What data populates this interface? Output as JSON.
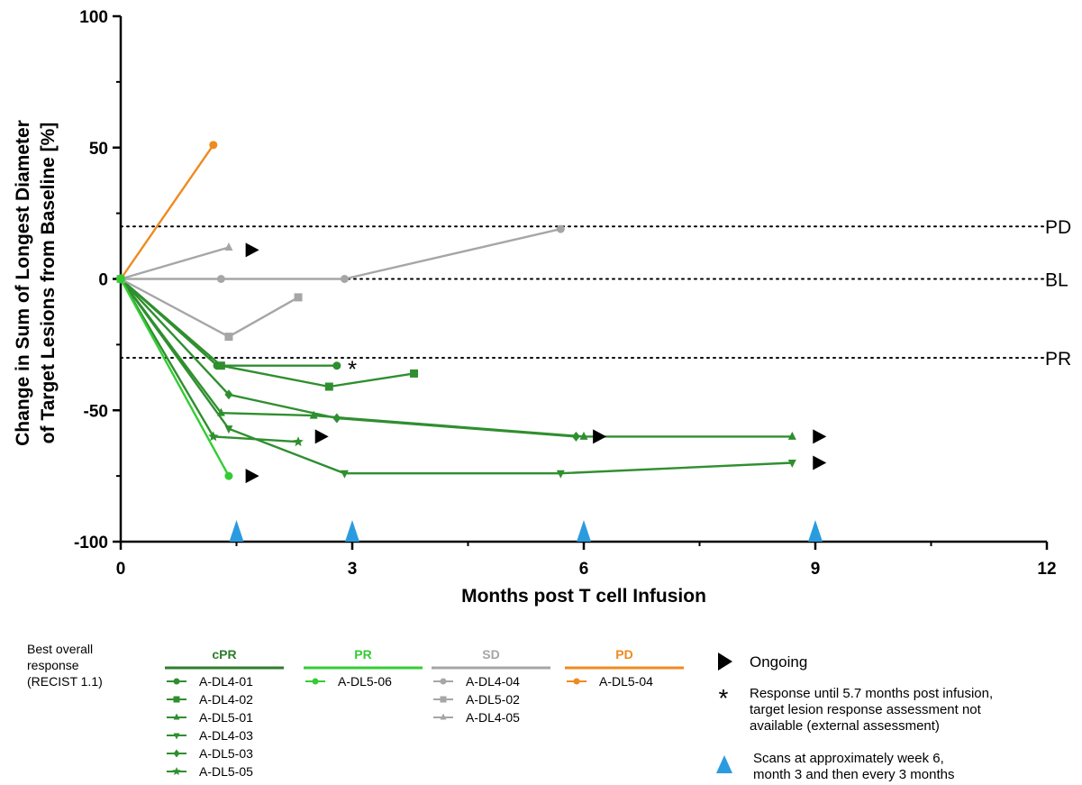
{
  "chart_data": {
    "type": "line",
    "xlabel": "Months post T cell Infusion",
    "ylabel_line1": "Change in Sum of Longest Diameter",
    "ylabel_line2": "of Target Lesions from Baseline [%]",
    "xlim": [
      0,
      12
    ],
    "ylim": [
      -100,
      100
    ],
    "x_ticks": [
      "0",
      "3",
      "6",
      "9",
      "12"
    ],
    "y_ticks": [
      "100",
      "50",
      "0",
      "-50",
      "-100"
    ],
    "reference_lines": [
      {
        "label": "PD",
        "y": 20
      },
      {
        "label": "BL",
        "y": 0
      },
      {
        "label": "PR",
        "y": -30
      }
    ],
    "series": [
      {
        "name": "A-DL4-01",
        "group": "cPR",
        "color": "#2f8f2f",
        "marker": "circle",
        "x": [
          0,
          1.25,
          2.8
        ],
        "y": [
          0,
          -33,
          -33
        ]
      },
      {
        "name": "A-DL4-02",
        "group": "cPR",
        "color": "#2f8f2f",
        "marker": "square",
        "x": [
          0,
          1.3,
          2.7,
          3.8
        ],
        "y": [
          0,
          -33,
          -41,
          -36
        ]
      },
      {
        "name": "A-DL5-01",
        "group": "cPR",
        "color": "#2f8f2f",
        "marker": "triangle-up",
        "x": [
          0,
          1.3,
          2.5,
          6.0,
          8.7
        ],
        "y": [
          0,
          -51,
          -52,
          -60,
          -60
        ]
      },
      {
        "name": "A-DL4-03",
        "group": "cPR",
        "color": "#2f8f2f",
        "marker": "triangle-down",
        "x": [
          0,
          1.4,
          2.9,
          5.7,
          8.7
        ],
        "y": [
          0,
          -57,
          -74,
          -74,
          -70
        ]
      },
      {
        "name": "A-DL5-03",
        "group": "cPR",
        "color": "#2f8f2f",
        "marker": "diamond",
        "x": [
          0,
          1.4,
          2.8,
          5.9
        ],
        "y": [
          0,
          -44,
          -53,
          -60
        ]
      },
      {
        "name": "A-DL5-05",
        "group": "cPR",
        "color": "#2f8f2f",
        "marker": "star",
        "x": [
          0,
          1.2,
          2.3
        ],
        "y": [
          0,
          -60,
          -62
        ]
      },
      {
        "name": "A-DL5-06",
        "group": "PR",
        "color": "#33cc33",
        "marker": "circle",
        "x": [
          0,
          1.4
        ],
        "y": [
          0,
          -75
        ]
      },
      {
        "name": "A-DL4-04",
        "group": "SD",
        "color": "#a6a6a6",
        "marker": "circle",
        "x": [
          0,
          1.3,
          2.9,
          5.7
        ],
        "y": [
          0,
          0,
          0,
          19
        ]
      },
      {
        "name": "A-DL5-02",
        "group": "SD",
        "color": "#a6a6a6",
        "marker": "square",
        "x": [
          0,
          1.4,
          2.3
        ],
        "y": [
          0,
          -22,
          -7
        ]
      },
      {
        "name": "A-DL4-05",
        "group": "SD",
        "color": "#a6a6a6",
        "marker": "triangle-up",
        "x": [
          0,
          1.4
        ],
        "y": [
          0,
          12
        ]
      },
      {
        "name": "A-DL5-04",
        "group": "PD",
        "color": "#ee8a1f",
        "marker": "circle",
        "x": [
          0,
          1.2
        ],
        "y": [
          0,
          51
        ]
      }
    ],
    "ongoing_markers": [
      {
        "x": 1.7,
        "y": 11
      },
      {
        "x": 2.6,
        "y": -60
      },
      {
        "x": 6.2,
        "y": -60
      },
      {
        "x": 9.05,
        "y": -60
      },
      {
        "x": 9.05,
        "y": -70
      },
      {
        "x": 1.7,
        "y": -75
      }
    ],
    "asterisk_markers": [
      {
        "x": 3.0,
        "y": -34
      }
    ],
    "scan_markers_x": [
      1.5,
      3,
      6,
      9
    ],
    "scan_color": "#2b9be0",
    "grid": false
  },
  "legend": {
    "title_line1": "Best overall",
    "title_line2": "response",
    "title_line3": "(RECIST 1.1)",
    "groups": [
      {
        "label": "cPR",
        "color": "#2e7d2e",
        "items": [
          "A-DL4-01",
          "A-DL4-02",
          "A-DL5-01",
          "A-DL4-03",
          "A-DL5-03",
          "A-DL5-05"
        ],
        "markers": [
          "circle",
          "square",
          "triangle-up",
          "triangle-down",
          "diamond",
          "star"
        ],
        "item_color": "#2f8f2f"
      },
      {
        "label": "PR",
        "color": "#33cc33",
        "items": [
          "A-DL5-06"
        ],
        "markers": [
          "circle"
        ],
        "item_color": "#33cc33"
      },
      {
        "label": "SD",
        "color": "#a6a6a6",
        "items": [
          "A-DL4-04",
          "A-DL5-02",
          "A-DL4-05"
        ],
        "markers": [
          "circle",
          "square",
          "triangle-up"
        ],
        "item_color": "#a6a6a6"
      },
      {
        "label": "PD",
        "color": "#ee8a1f",
        "items": [
          "A-DL5-04"
        ],
        "markers": [
          "circle"
        ],
        "item_color": "#ee8a1f"
      }
    ],
    "symbols": {
      "ongoing": "Ongoing",
      "asterisk_line1": "Response until 5.7 months post infusion,",
      "asterisk_line2": "target lesion response assessment not",
      "asterisk_line3": "available (external assessment)",
      "scans_line1": "Scans at approximately week 6,",
      "scans_line2": "month 3 and then every 3 months"
    }
  }
}
